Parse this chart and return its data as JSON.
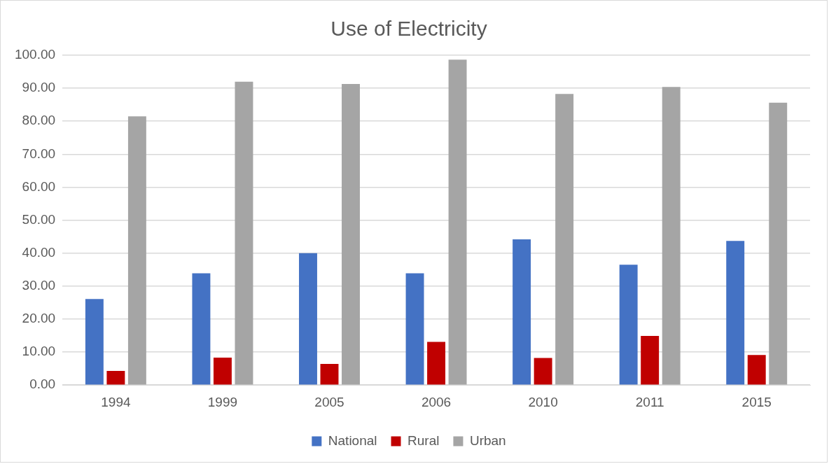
{
  "chart_data": {
    "type": "bar",
    "title": "Use of Electricity",
    "categories": [
      "1994",
      "1999",
      "2005",
      "2006",
      "2010",
      "2011",
      "2015"
    ],
    "series": [
      {
        "name": "National",
        "color": "#4472c4",
        "values": [
          26.1,
          33.9,
          40.0,
          33.9,
          44.2,
          36.5,
          43.7
        ]
      },
      {
        "name": "Rural",
        "color": "#c00000",
        "values": [
          4.3,
          8.3,
          6.4,
          13.1,
          8.2,
          14.9,
          9.1
        ]
      },
      {
        "name": "Urban",
        "color": "#a5a5a5",
        "values": [
          81.5,
          92.0,
          91.3,
          98.7,
          88.3,
          90.4,
          85.6
        ]
      }
    ],
    "ylim": [
      0,
      100
    ],
    "yticks": [
      {
        "value": 0,
        "label": "0.00"
      },
      {
        "value": 10,
        "label": "10.00"
      },
      {
        "value": 20,
        "label": "20.00"
      },
      {
        "value": 30,
        "label": "30.00"
      },
      {
        "value": 40,
        "label": "40.00"
      },
      {
        "value": 50,
        "label": "50.00"
      },
      {
        "value": 60,
        "label": "60.00"
      },
      {
        "value": 70,
        "label": "70.00"
      },
      {
        "value": 80,
        "label": "80.00"
      },
      {
        "value": 90,
        "label": "90.00"
      },
      {
        "value": 100,
        "label": "100.00"
      }
    ],
    "grid": "y",
    "legend": "bottom"
  }
}
